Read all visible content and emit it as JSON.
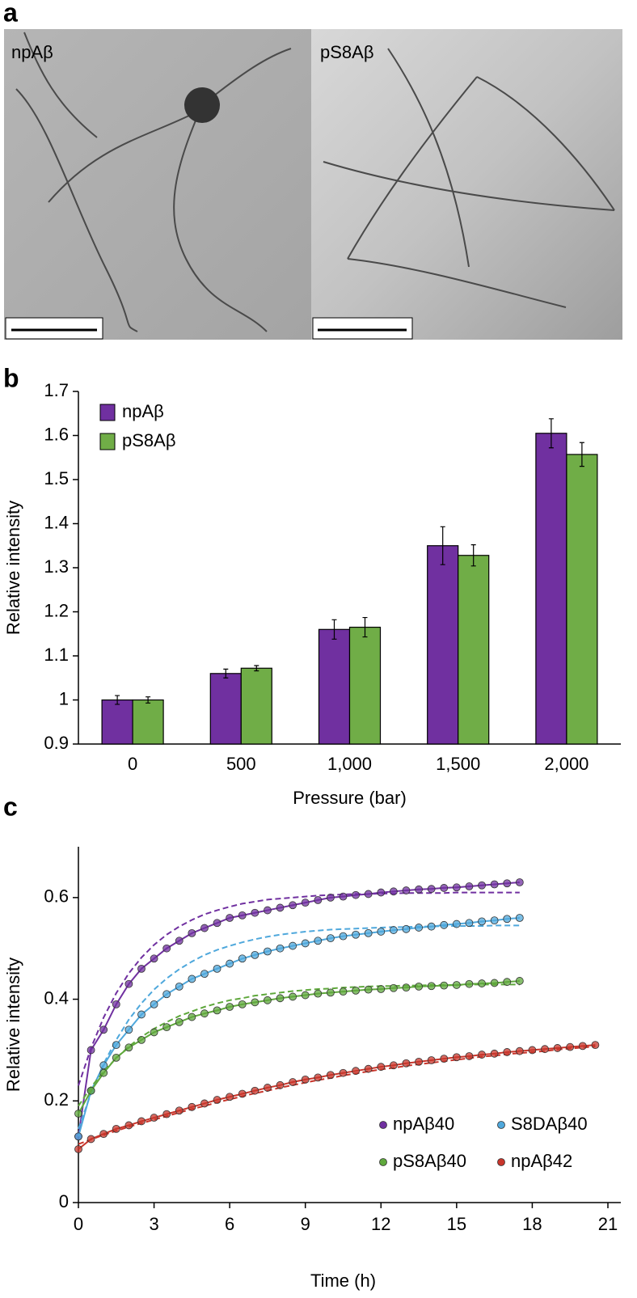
{
  "panel_labels": [
    "a",
    "b",
    "c"
  ],
  "image_panels": [
    {
      "label": "npAβ"
    },
    {
      "label": "pS8Aβ"
    }
  ],
  "chart_data": [
    {
      "type": "bar",
      "xlabel": "Pressure (bar)",
      "ylabel": "Relative intensity",
      "categories": [
        "0",
        "500",
        "1,000",
        "1,500",
        "2,000"
      ],
      "series": [
        {
          "name": "npAβ",
          "color": "#7030a0",
          "values": [
            1.0,
            1.06,
            1.16,
            1.35,
            1.605
          ],
          "errors": [
            0.01,
            0.01,
            0.022,
            0.043,
            0.033
          ]
        },
        {
          "name": "pS8Aβ",
          "color": "#70ad47",
          "values": [
            1.0,
            1.072,
            1.165,
            1.328,
            1.557
          ],
          "errors": [
            0.007,
            0.006,
            0.022,
            0.024,
            0.027
          ]
        }
      ],
      "ylim": [
        0.9,
        1.7
      ],
      "yticks": [
        0.9,
        1,
        1.1,
        1.2,
        1.3,
        1.4,
        1.5,
        1.6,
        1.7
      ],
      "legend": "upper left"
    },
    {
      "type": "line",
      "xlabel": "Time (h)",
      "ylabel": "Relative intensity",
      "xlim": [
        0,
        21
      ],
      "xticks": [
        0,
        3,
        6,
        9,
        12,
        15,
        18,
        21
      ],
      "ylim": [
        0,
        0.7
      ],
      "yticks": [
        0,
        0.2,
        0.4,
        0.6
      ],
      "legend": "lower right",
      "series": [
        {
          "name": "npAβ40",
          "color": "#7030a0",
          "x": [
            0,
            0.5,
            1,
            1.5,
            2,
            2.5,
            3,
            3.5,
            4,
            4.5,
            5,
            5.5,
            6,
            6.5,
            7,
            7.5,
            8,
            8.5,
            9,
            9.5,
            10,
            10.5,
            11,
            11.5,
            12,
            12.5,
            13,
            13.5,
            14,
            14.5,
            15,
            15.5,
            16,
            16.5,
            17,
            17.5
          ],
          "values": [
            0.13,
            0.3,
            0.34,
            0.39,
            0.43,
            0.46,
            0.48,
            0.5,
            0.515,
            0.53,
            0.54,
            0.55,
            0.56,
            0.565,
            0.57,
            0.575,
            0.58,
            0.585,
            0.59,
            0.595,
            0.6,
            0.602,
            0.605,
            0.607,
            0.61,
            0.612,
            0.614,
            0.616,
            0.617,
            0.619,
            0.62,
            0.622,
            0.624,
            0.626,
            0.628,
            0.63
          ],
          "fit": [
            0.23,
            0.304,
            0.364,
            0.412,
            0.451,
            0.482,
            0.507,
            0.527,
            0.543,
            0.556,
            0.567,
            0.575,
            0.582,
            0.588,
            0.592,
            0.596,
            0.598,
            0.6,
            0.602,
            0.604,
            0.605,
            0.606,
            0.607,
            0.607,
            0.608,
            0.608,
            0.609,
            0.609,
            0.609,
            0.609,
            0.61,
            0.61,
            0.61,
            0.61,
            0.61,
            0.61
          ]
        },
        {
          "name": "S8DAβ40",
          "color": "#4fa8dc",
          "x": [
            0,
            0.5,
            1,
            1.5,
            2,
            2.5,
            3,
            3.5,
            4,
            4.5,
            5,
            5.5,
            6,
            6.5,
            7,
            7.5,
            8,
            8.5,
            9,
            9.5,
            10,
            10.5,
            11,
            11.5,
            12,
            12.5,
            13,
            13.5,
            14,
            14.5,
            15,
            15.5,
            16,
            16.5,
            17,
            17.5
          ],
          "values": [
            0.13,
            0.22,
            0.27,
            0.31,
            0.34,
            0.37,
            0.39,
            0.41,
            0.425,
            0.44,
            0.45,
            0.46,
            0.47,
            0.48,
            0.487,
            0.494,
            0.5,
            0.505,
            0.51,
            0.515,
            0.52,
            0.524,
            0.527,
            0.53,
            0.533,
            0.536,
            0.538,
            0.541,
            0.543,
            0.546,
            0.548,
            0.55,
            0.553,
            0.555,
            0.558,
            0.56
          ],
          "fit": [
            0.145,
            0.215,
            0.273,
            0.32,
            0.36,
            0.392,
            0.419,
            0.441,
            0.459,
            0.474,
            0.487,
            0.497,
            0.505,
            0.512,
            0.518,
            0.523,
            0.527,
            0.53,
            0.533,
            0.535,
            0.537,
            0.538,
            0.539,
            0.54,
            0.541,
            0.542,
            0.542,
            0.543,
            0.543,
            0.544,
            0.544,
            0.544,
            0.544,
            0.545,
            0.545,
            0.545
          ]
        },
        {
          "name": "pS8Aβ40",
          "color": "#5fa83c",
          "x": [
            0,
            0.5,
            1,
            1.5,
            2,
            2.5,
            3,
            3.5,
            4,
            4.5,
            5,
            5.5,
            6,
            6.5,
            7,
            7.5,
            8,
            8.5,
            9,
            9.5,
            10,
            10.5,
            11,
            11.5,
            12,
            12.5,
            13,
            13.5,
            14,
            14.5,
            15,
            15.5,
            16,
            16.5,
            17,
            17.5
          ],
          "values": [
            0.175,
            0.22,
            0.255,
            0.285,
            0.305,
            0.32,
            0.335,
            0.345,
            0.355,
            0.365,
            0.372,
            0.378,
            0.385,
            0.39,
            0.394,
            0.398,
            0.402,
            0.405,
            0.408,
            0.411,
            0.413,
            0.415,
            0.417,
            0.419,
            0.42,
            0.422,
            0.423,
            0.425,
            0.426,
            0.427,
            0.428,
            0.43,
            0.431,
            0.432,
            0.434,
            0.436
          ],
          "fit": [
            0.19,
            0.227,
            0.258,
            0.284,
            0.307,
            0.326,
            0.342,
            0.355,
            0.367,
            0.376,
            0.385,
            0.392,
            0.398,
            0.402,
            0.407,
            0.41,
            0.413,
            0.416,
            0.418,
            0.42,
            0.421,
            0.423,
            0.424,
            0.425,
            0.426,
            0.426,
            0.427,
            0.427,
            0.428,
            0.428,
            0.428,
            0.429,
            0.429,
            0.429,
            0.429,
            0.429
          ]
        },
        {
          "name": "npAβ42",
          "color": "#c8352b",
          "x": [
            0,
            0.5,
            1,
            1.5,
            2,
            2.5,
            3,
            3.5,
            4,
            4.5,
            5,
            5.5,
            6,
            6.5,
            7,
            7.5,
            8,
            8.5,
            9,
            9.5,
            10,
            10.5,
            11,
            11.5,
            12,
            12.5,
            13,
            13.5,
            14,
            14.5,
            15,
            15.5,
            16,
            16.5,
            17,
            17.5,
            18,
            18.5,
            19,
            19.5,
            20,
            20.5
          ],
          "values": [
            0.105,
            0.125,
            0.135,
            0.145,
            0.152,
            0.16,
            0.167,
            0.174,
            0.181,
            0.188,
            0.195,
            0.202,
            0.208,
            0.214,
            0.22,
            0.226,
            0.231,
            0.237,
            0.242,
            0.246,
            0.251,
            0.255,
            0.259,
            0.263,
            0.267,
            0.27,
            0.274,
            0.277,
            0.28,
            0.283,
            0.286,
            0.288,
            0.291,
            0.293,
            0.296,
            0.298,
            0.3,
            0.302,
            0.304,
            0.306,
            0.308,
            0.31
          ],
          "fit": [
            0.115,
            0.124,
            0.133,
            0.141,
            0.149,
            0.156,
            0.163,
            0.17,
            0.177,
            0.184,
            0.19,
            0.197,
            0.203,
            0.209,
            0.215,
            0.22,
            0.226,
            0.231,
            0.236,
            0.241,
            0.245,
            0.25,
            0.254,
            0.258,
            0.262,
            0.265,
            0.269,
            0.272,
            0.275,
            0.278,
            0.281,
            0.284,
            0.287,
            0.289,
            0.292,
            0.294,
            0.296,
            0.298,
            0.301,
            0.303,
            0.305,
            0.307
          ]
        }
      ]
    }
  ]
}
